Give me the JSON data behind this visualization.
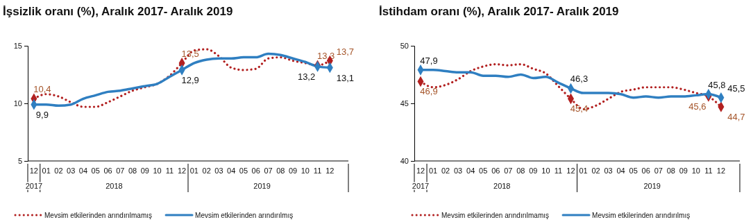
{
  "chart_data": [
    {
      "type": "line",
      "title": "İşsizlik oranı (%), Aralık 2017- Aralık 2019",
      "categories": [
        "12",
        "01",
        "02",
        "03",
        "04",
        "05",
        "06",
        "07",
        "08",
        "09",
        "10",
        "11",
        "12",
        "01",
        "02",
        "03",
        "04",
        "05",
        "06",
        "07",
        "08",
        "09",
        "10",
        "11",
        "12"
      ],
      "annotations": [
        "2017",
        "2018",
        "2019"
      ],
      "ylim": [
        5,
        15
      ],
      "yticks": [
        5,
        10,
        15
      ],
      "grid": false,
      "legend": "bottom",
      "series": [
        {
          "name": "Mevsim etkilerinden arındırılmamış",
          "color": "#b22020",
          "line_style": "dotted",
          "values": [
            10.4,
            10.8,
            10.6,
            10.1,
            9.7,
            9.7,
            10.1,
            10.6,
            11.1,
            11.4,
            11.7,
            12.4,
            13.5,
            14.6,
            14.7,
            14.1,
            13.1,
            12.9,
            13.0,
            13.9,
            14.0,
            13.7,
            13.5,
            13.3,
            13.7
          ],
          "value_labels": [
            "10,4",
            null,
            null,
            null,
            null,
            null,
            null,
            null,
            null,
            null,
            null,
            null,
            "13,5",
            null,
            null,
            null,
            null,
            null,
            null,
            null,
            null,
            null,
            null,
            "13,3",
            "13,7"
          ]
        },
        {
          "name": "Mevsim etkilerinden arındırılmış",
          "color": "#2f7fc1",
          "line_style": "solid",
          "values": [
            9.9,
            9.9,
            9.8,
            9.9,
            10.4,
            10.7,
            11.0,
            11.1,
            11.3,
            11.5,
            11.7,
            12.3,
            12.9,
            13.5,
            13.8,
            13.9,
            13.9,
            14.0,
            14.0,
            14.3,
            14.2,
            13.9,
            13.6,
            13.2,
            13.1
          ],
          "value_labels": [
            "9,9",
            null,
            null,
            null,
            null,
            null,
            null,
            null,
            null,
            null,
            null,
            null,
            "12,9",
            null,
            null,
            null,
            null,
            null,
            null,
            null,
            null,
            null,
            null,
            "13,2",
            "13,1"
          ]
        }
      ]
    },
    {
      "type": "line",
      "title": "İstihdam oranı (%), Aralık 2017- Aralık 2019",
      "categories": [
        "12",
        "01",
        "02",
        "03",
        "04",
        "05",
        "06",
        "07",
        "08",
        "09",
        "10",
        "11",
        "12",
        "01",
        "02",
        "03",
        "04",
        "05",
        "06",
        "07",
        "08",
        "09",
        "10",
        "11",
        "12"
      ],
      "annotations": [
        "2017",
        "2018",
        "2019"
      ],
      "ylim": [
        40,
        50
      ],
      "yticks": [
        40,
        45,
        50
      ],
      "grid": false,
      "legend": "bottom",
      "series": [
        {
          "name": "Mevsim etkilerinden arındırılmamış",
          "color": "#b22020",
          "line_style": "dotted",
          "values": [
            46.9,
            46.4,
            46.6,
            47.1,
            47.8,
            48.2,
            48.4,
            48.3,
            48.4,
            48.0,
            47.6,
            46.5,
            45.4,
            44.5,
            44.8,
            45.4,
            46.0,
            46.2,
            46.4,
            46.4,
            46.4,
            46.2,
            45.9,
            45.6,
            44.7
          ],
          "value_labels": [
            "46,9",
            null,
            null,
            null,
            null,
            null,
            null,
            null,
            null,
            null,
            null,
            null,
            "45,4",
            null,
            null,
            null,
            null,
            null,
            null,
            null,
            null,
            null,
            null,
            "45,6",
            "44,7"
          ]
        },
        {
          "name": "Mevsim etkilerinden arındırılmış",
          "color": "#2f7fc1",
          "line_style": "solid",
          "values": [
            47.9,
            47.9,
            47.8,
            47.7,
            47.7,
            47.4,
            47.4,
            47.3,
            47.5,
            47.2,
            47.3,
            46.8,
            46.3,
            45.9,
            45.9,
            45.9,
            45.8,
            45.5,
            45.6,
            45.5,
            45.6,
            45.6,
            45.7,
            45.8,
            45.5
          ],
          "value_labels": [
            "47,9",
            null,
            null,
            null,
            null,
            null,
            null,
            null,
            null,
            null,
            null,
            null,
            "46,3",
            null,
            null,
            null,
            null,
            null,
            null,
            null,
            null,
            null,
            null,
            "45,8",
            "45,5"
          ]
        }
      ]
    }
  ]
}
